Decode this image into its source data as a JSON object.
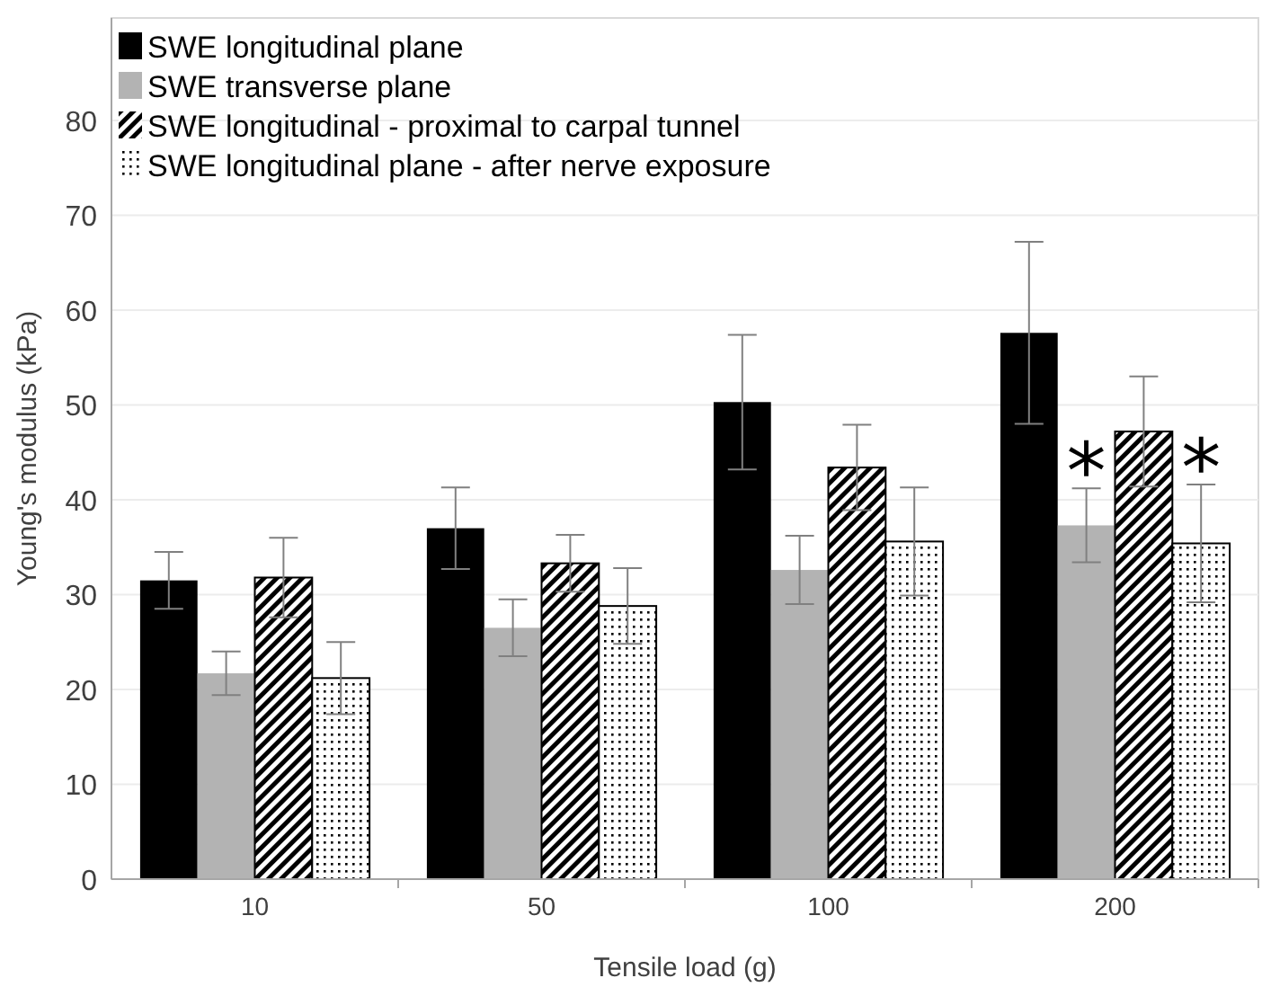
{
  "chart_data": {
    "type": "bar",
    "xlabel": "Tensile load (g)",
    "ylabel": "Young's modulus (kPa)",
    "categories": [
      "10",
      "50",
      "100",
      "200"
    ],
    "series": [
      {
        "name": "SWE longitudinal plane",
        "color": "#000000",
        "values": [
          31.5,
          37,
          50.3,
          57.6
        ],
        "errors": [
          3,
          4.3,
          7.1,
          9.6
        ]
      },
      {
        "name": "SWE transverse plane",
        "color": "#b3b3b3",
        "values": [
          21.7,
          26.5,
          32.6,
          37.3
        ],
        "errors": [
          2.3,
          3,
          3.6,
          3.9
        ]
      },
      {
        "name": "SWE longitudinal - proximal to carpal tunnel",
        "color": "#000000",
        "values": [
          31.8,
          33.3,
          43.4,
          47.2
        ],
        "errors": [
          4.2,
          3,
          4.5,
          5.8
        ]
      },
      {
        "name": "SWE longitudinal plane - after nerve exposure",
        "color": "#000000",
        "values": [
          21.2,
          28.8,
          35.6,
          35.4
        ],
        "errors": [
          3.8,
          4,
          5.7,
          6.2
        ]
      }
    ],
    "ylim": [
      0,
      90.8
    ],
    "yticks": [
      0,
      10,
      20,
      30,
      40,
      50,
      60,
      70,
      80
    ],
    "grid": "y",
    "legend": "top left",
    "annotations": [
      {
        "text": "*",
        "x": "200",
        "y": 37.3
      },
      {
        "text": "*",
        "x": "200",
        "y": 35.4
      }
    ]
  }
}
